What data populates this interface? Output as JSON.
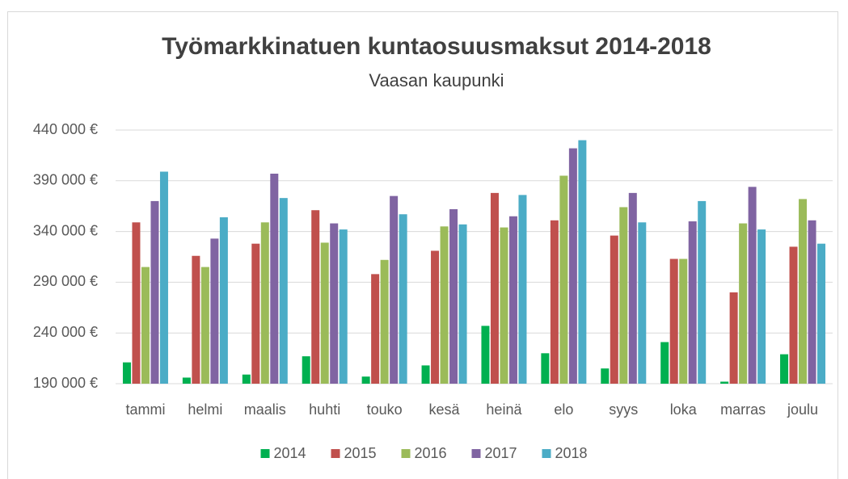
{
  "chart_data": {
    "type": "bar",
    "title": "Työmarkkinatuen kuntaosuusmaksut 2014-2018",
    "subtitle": "Vaasan kaupunki",
    "categories": [
      "tammi",
      "helmi",
      "maalis",
      "huhti",
      "touko",
      "kesä",
      "heinä",
      "elo",
      "syys",
      "loka",
      "marras",
      "joulu"
    ],
    "series": [
      {
        "name": "2014",
        "color": "#00b050",
        "values": [
          211000,
          196000,
          199000,
          217000,
          197000,
          208000,
          247000,
          220000,
          205000,
          231000,
          192000,
          219000
        ]
      },
      {
        "name": "2015",
        "color": "#c0504d",
        "values": [
          349000,
          316000,
          328000,
          361000,
          298000,
          321000,
          378000,
          351000,
          336000,
          313000,
          280000,
          325000
        ]
      },
      {
        "name": "2016",
        "color": "#9bbb59",
        "values": [
          305000,
          305000,
          349000,
          329000,
          312000,
          345000,
          344000,
          395000,
          364000,
          313000,
          348000,
          372000
        ]
      },
      {
        "name": "2017",
        "color": "#8064a2",
        "values": [
          370000,
          333000,
          397000,
          348000,
          375000,
          362000,
          355000,
          422000,
          378000,
          350000,
          384000,
          351000
        ]
      },
      {
        "name": "2018",
        "color": "#4bacc6",
        "values": [
          399000,
          354000,
          373000,
          342000,
          357000,
          347000,
          376000,
          430000,
          349000,
          370000,
          342000,
          328000
        ]
      }
    ],
    "ylim": [
      190000,
      440000
    ],
    "yticks": [
      {
        "value": 190000,
        "label": "190 000 €"
      },
      {
        "value": 240000,
        "label": "240 000 €"
      },
      {
        "value": 290000,
        "label": "290 000 €"
      },
      {
        "value": 340000,
        "label": "340 000 €"
      },
      {
        "value": 390000,
        "label": "390 000 €"
      },
      {
        "value": 440000,
        "label": "440 000 €"
      }
    ],
    "grid": true,
    "legend": "bottom"
  }
}
